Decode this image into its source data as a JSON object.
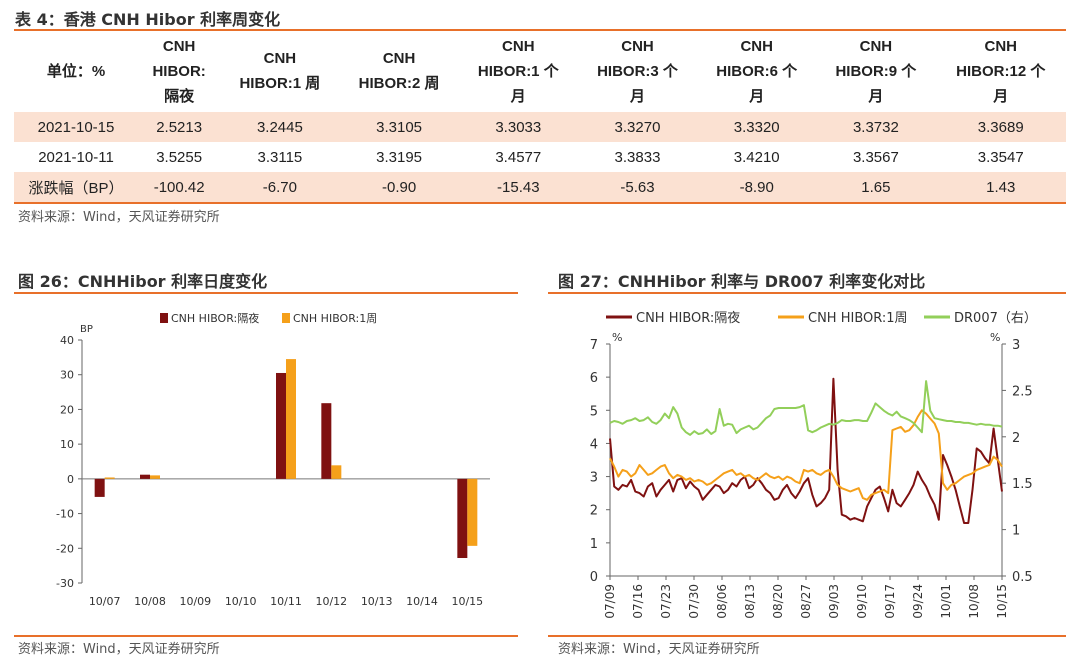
{
  "table": {
    "title": "表 4：香港 CNH Hibor 利率周变化",
    "headers": [
      "单位：%",
      "CNH\nHIBOR:\n隔夜",
      "CNH\nHIBOR:1 周",
      "CNH\nHIBOR:2 周",
      "CNH\nHIBOR:1 个\n月",
      "CNH\nHIBOR:3 个\n月",
      "CNH\nHIBOR:6 个\n月",
      "CNH\nHIBOR:9 个\n月",
      "CNH\nHIBOR:12 个\n月"
    ],
    "rows": [
      [
        "2021-10-15",
        "2.5213",
        "3.2445",
        "3.3105",
        "3.3033",
        "3.3270",
        "3.3320",
        "3.3732",
        "3.3689"
      ],
      [
        "2021-10-11",
        "3.5255",
        "3.3115",
        "3.3195",
        "3.4577",
        "3.3833",
        "3.4210",
        "3.3567",
        "3.3547"
      ],
      [
        "涨跌幅（BP）",
        "-100.42",
        "-6.70",
        "-0.90",
        "-15.43",
        "-5.63",
        "-8.90",
        "1.65",
        "1.43"
      ]
    ],
    "source": "资料来源：Wind，天风证券研究所"
  },
  "fig26": {
    "title": "图 26：CNHHibor 利率日度变化",
    "source": "资料来源：Wind，天风证券研究所"
  },
  "fig27": {
    "title": "图 27：CNHHibor 利率与 DR007 利率变化对比",
    "source": "资料来源：Wind，天风证券研究所"
  },
  "colors": {
    "accent": "#e8702a",
    "overnight": "#7f1111",
    "week": "#f5a01a",
    "dr007": "#92cf5a",
    "highlight": "#fbe1d2"
  },
  "chart_data": [
    {
      "type": "bar",
      "title": "",
      "ylabel": "BP",
      "ylim": [
        -30,
        40
      ],
      "yticks": [
        -30,
        -20,
        -10,
        0,
        10,
        20,
        30,
        40
      ],
      "legend_position": "top",
      "categories": [
        "10/07",
        "10/08",
        "10/09",
        "10/10",
        "10/11",
        "10/12",
        "10/13",
        "10/14",
        "10/15"
      ],
      "series": [
        {
          "name": "CNH HIBOR:隔夜",
          "color": "#7f1111",
          "values": [
            -5.2,
            1.2,
            0,
            0,
            30.5,
            21.8,
            0,
            0,
            -22.8
          ]
        },
        {
          "name": "CNH HIBOR:1周",
          "color": "#f5a01a",
          "values": [
            0.4,
            1.0,
            0,
            0,
            34.5,
            3.9,
            0,
            0,
            -19.3
          ]
        }
      ]
    },
    {
      "type": "line",
      "title": "",
      "legend_position": "top",
      "x_ticks": [
        "07/09",
        "07/16",
        "07/23",
        "07/30",
        "08/06",
        "08/13",
        "08/20",
        "08/27",
        "09/03",
        "09/10",
        "09/17",
        "09/24",
        "10/01",
        "10/08",
        "10/15"
      ],
      "y_left": {
        "label": "%",
        "range": [
          0,
          7
        ],
        "ticks": [
          0,
          1,
          2,
          3,
          4,
          5,
          6,
          7
        ]
      },
      "y_right": {
        "label": "%",
        "range": [
          0.5,
          3
        ],
        "ticks": [
          0.5,
          1,
          1.5,
          2,
          2.5,
          3
        ]
      },
      "x_start": "2021-07-14",
      "series": [
        {
          "name": "CNH HIBOR:隔夜",
          "axis": "left",
          "color": "#7f1111",
          "values": [
            4.15,
            2.7,
            2.6,
            2.75,
            2.7,
            2.9,
            2.55,
            2.5,
            2.4,
            2.7,
            2.8,
            2.4,
            2.6,
            2.75,
            2.9,
            2.55,
            2.9,
            2.95,
            2.65,
            2.85,
            2.7,
            2.6,
            2.3,
            2.45,
            2.6,
            2.75,
            2.7,
            2.5,
            2.6,
            2.8,
            2.7,
            2.9,
            3.0,
            2.65,
            2.75,
            2.95,
            2.8,
            2.6,
            2.5,
            2.3,
            2.35,
            2.6,
            2.75,
            2.5,
            2.35,
            2.55,
            2.8,
            2.95,
            2.45,
            2.1,
            2.2,
            2.35,
            2.6,
            5.95,
            3.2,
            1.85,
            1.8,
            1.7,
            1.75,
            1.7,
            1.65,
            2.1,
            2.35,
            2.6,
            2.7,
            2.35,
            1.95,
            2.6,
            2.2,
            2.1,
            2.3,
            2.5,
            2.75,
            3.15,
            2.9,
            2.7,
            2.4,
            2.15,
            1.7,
            3.65,
            3.35,
            3.0,
            2.6,
            2.1,
            1.6,
            1.6,
            2.6,
            3.85,
            3.75,
            3.55,
            3.4,
            4.45,
            3.5,
            2.55
          ]
        },
        {
          "name": "CNH HIBOR:1周",
          "axis": "left",
          "color": "#f5a01a",
          "values": [
            3.55,
            3.3,
            3.0,
            3.2,
            3.15,
            3.0,
            3.1,
            3.35,
            3.2,
            3.05,
            3.1,
            3.2,
            3.3,
            3.35,
            3.1,
            2.95,
            3.05,
            3.0,
            2.9,
            2.95,
            2.85,
            2.9,
            2.85,
            2.75,
            2.8,
            2.9,
            3.0,
            3.1,
            3.15,
            3.2,
            3.05,
            3.1,
            3.0,
            3.05,
            2.95,
            2.9,
            3.0,
            3.1,
            3.0,
            2.95,
            3.0,
            2.9,
            3.0,
            2.95,
            2.85,
            2.8,
            3.2,
            3.15,
            3.2,
            3.1,
            3.05,
            3.15,
            3.2,
            3.0,
            2.75,
            2.65,
            2.6,
            2.55,
            2.6,
            2.65,
            2.35,
            2.3,
            2.45,
            2.5,
            2.55,
            2.6,
            2.5,
            4.4,
            4.45,
            4.5,
            4.35,
            4.4,
            4.55,
            4.8,
            5.0,
            4.9,
            4.75,
            4.6,
            4.3,
            2.8,
            2.6,
            2.75,
            2.8,
            2.9,
            3.0,
            3.05,
            3.1,
            3.2,
            3.25,
            3.3,
            3.35,
            3.6,
            3.5,
            3.3
          ]
        },
        {
          "name": "DR007（右）",
          "axis": "right",
          "color": "#92cf5a",
          "values": [
            2.15,
            2.17,
            2.16,
            2.14,
            2.17,
            2.18,
            2.2,
            2.17,
            2.18,
            2.21,
            2.16,
            2.14,
            2.18,
            2.25,
            2.2,
            2.32,
            2.25,
            2.1,
            2.05,
            2.02,
            2.06,
            2.03,
            2.04,
            2.08,
            2.03,
            2.06,
            2.3,
            2.12,
            2.14,
            2.13,
            2.04,
            2.08,
            2.1,
            2.12,
            2.08,
            2.1,
            2.15,
            2.2,
            2.23,
            2.3,
            2.31,
            2.31,
            2.31,
            2.31,
            2.31,
            2.32,
            2.34,
            2.07,
            2.05,
            2.07,
            2.1,
            2.12,
            2.14,
            2.13,
            2.15,
            2.18,
            2.17,
            2.17,
            2.18,
            2.18,
            2.17,
            2.17,
            2.26,
            2.36,
            2.32,
            2.28,
            2.25,
            2.23,
            2.27,
            2.22,
            2.2,
            2.18,
            2.15,
            2.1,
            2.05,
            2.6,
            2.28,
            2.2,
            2.19,
            2.18,
            2.17,
            2.17,
            2.16,
            2.16,
            2.15,
            2.15,
            2.14,
            2.13,
            2.14,
            2.13,
            2.13,
            2.12,
            2.12,
            2.11
          ]
        }
      ]
    }
  ]
}
